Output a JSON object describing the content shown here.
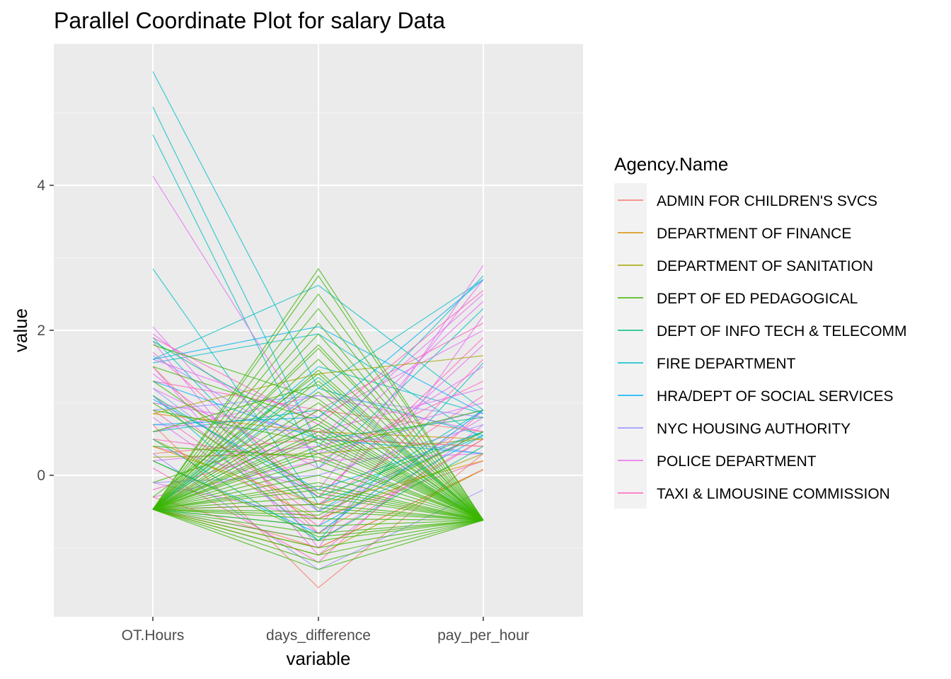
{
  "chart_data": {
    "type": "line",
    "subtype": "parallel-coordinates",
    "title": "Parallel Coordinate Plot for salary Data",
    "xlabel": "variable",
    "ylabel": "value",
    "categories": [
      "OT.Hours",
      "days_difference",
      "pay_per_hour"
    ],
    "ylim": [
      -1.95,
      5.95
    ],
    "yticks": [
      0,
      2,
      4
    ],
    "grid": true,
    "legend": {
      "title": "Agency.Name",
      "position": "right",
      "entries": [
        {
          "name": "ADMIN FOR CHILDREN'S SVCS",
          "color": "#F8766D"
        },
        {
          "name": "DEPARTMENT OF FINANCE",
          "color": "#D89000"
        },
        {
          "name": "DEPARTMENT OF SANITATION",
          "color": "#A3A500"
        },
        {
          "name": "DEPT OF ED PEDAGOGICAL",
          "color": "#39B600"
        },
        {
          "name": "DEPT OF INFO TECH & TELECOMM",
          "color": "#00BF7D"
        },
        {
          "name": "FIRE DEPARTMENT",
          "color": "#00BFC4"
        },
        {
          "name": "HRA/DEPT OF SOCIAL SERVICES",
          "color": "#00B0F6"
        },
        {
          "name": "NYC HOUSING AUTHORITY",
          "color": "#9590FF"
        },
        {
          "name": "POLICE DEPARTMENT",
          "color": "#E76BF3"
        },
        {
          "name": "TAXI & LIMOUSINE COMMISSION",
          "color": "#FF62BC"
        }
      ]
    },
    "series": [
      {
        "group": 5,
        "values": [
          5.57,
          1.2,
          2.7
        ]
      },
      {
        "group": 5,
        "values": [
          5.08,
          0.4,
          2.75
        ]
      },
      {
        "group": 5,
        "values": [
          4.7,
          0.1,
          2.3
        ]
      },
      {
        "group": 5,
        "values": [
          2.85,
          -0.4,
          0.55
        ]
      },
      {
        "group": 5,
        "values": [
          1.6,
          2.62,
          0.9
        ]
      },
      {
        "group": 5,
        "values": [
          1.55,
          1.95,
          0.5
        ]
      },
      {
        "group": 5,
        "values": [
          1.1,
          -0.9,
          1.55
        ]
      },
      {
        "group": 5,
        "values": [
          0.6,
          0.9,
          -0.62
        ]
      },
      {
        "group": 5,
        "values": [
          -0.47,
          1.5,
          0.85
        ]
      },
      {
        "group": 5,
        "values": [
          -0.47,
          1.2,
          0.55
        ]
      },
      {
        "group": 5,
        "values": [
          1.9,
          -0.5,
          0.9
        ]
      },
      {
        "group": 8,
        "values": [
          4.13,
          0.5,
          2.5
        ]
      },
      {
        "group": 8,
        "values": [
          2.05,
          -0.5,
          2.9
        ]
      },
      {
        "group": 8,
        "values": [
          1.95,
          0.3,
          2.4
        ]
      },
      {
        "group": 8,
        "values": [
          1.85,
          -1.0,
          2.2
        ]
      },
      {
        "group": 8,
        "values": [
          1.6,
          0.8,
          2.0
        ]
      },
      {
        "group": 8,
        "values": [
          1.4,
          -0.3,
          1.8
        ]
      },
      {
        "group": 8,
        "values": [
          1.2,
          0.1,
          1.5
        ]
      },
      {
        "group": 8,
        "values": [
          1.0,
          0.6,
          1.2
        ]
      },
      {
        "group": 8,
        "values": [
          0.8,
          -0.8,
          0.9
        ]
      },
      {
        "group": 8,
        "values": [
          0.6,
          1.1,
          0.6
        ]
      },
      {
        "group": 8,
        "values": [
          0.4,
          -0.2,
          2.7
        ]
      },
      {
        "group": 8,
        "values": [
          0.2,
          0.4,
          1.0
        ]
      },
      {
        "group": 8,
        "values": [
          -0.1,
          -0.6,
          0.8
        ]
      },
      {
        "group": 8,
        "values": [
          -0.3,
          0.2,
          0.3
        ]
      },
      {
        "group": 8,
        "values": [
          -0.47,
          -0.9,
          0.5
        ]
      },
      {
        "group": 8,
        "values": [
          1.5,
          -1.1,
          0.7
        ]
      },
      {
        "group": 9,
        "values": [
          1.9,
          0.7,
          2.55
        ]
      },
      {
        "group": 9,
        "values": [
          1.7,
          -0.3,
          1.9
        ]
      },
      {
        "group": 9,
        "values": [
          1.3,
          0.9,
          2.1
        ]
      },
      {
        "group": 9,
        "values": [
          0.9,
          -0.7,
          1.6
        ]
      },
      {
        "group": 9,
        "values": [
          0.5,
          0.2,
          1.3
        ]
      },
      {
        "group": 9,
        "values": [
          0.1,
          -1.2,
          0.9
        ]
      },
      {
        "group": 9,
        "values": [
          -0.2,
          0.5,
          0.4
        ]
      },
      {
        "group": 9,
        "values": [
          -0.47,
          -0.4,
          1.1
        ]
      },
      {
        "group": 9,
        "values": [
          1.1,
          -0.6,
          0.2
        ]
      },
      {
        "group": 7,
        "values": [
          1.65,
          0.3,
          0.9
        ]
      },
      {
        "group": 7,
        "values": [
          1.2,
          -0.5,
          0.6
        ]
      },
      {
        "group": 7,
        "values": [
          0.7,
          0.6,
          0.3
        ]
      },
      {
        "group": 7,
        "values": [
          0.3,
          -1.3,
          -0.2
        ]
      },
      {
        "group": 7,
        "values": [
          -0.1,
          0.0,
          0.7
        ]
      },
      {
        "group": 7,
        "values": [
          0.9,
          1.1,
          0.8
        ]
      },
      {
        "group": 6,
        "values": [
          1.6,
          2.05,
          0.85
        ]
      },
      {
        "group": 6,
        "values": [
          1.05,
          -0.2,
          0.6
        ]
      },
      {
        "group": 6,
        "values": [
          0.7,
          0.8,
          2.7
        ]
      },
      {
        "group": 6,
        "values": [
          0.2,
          -0.8,
          0.9
        ]
      },
      {
        "group": 6,
        "values": [
          -0.47,
          -0.7,
          0.55
        ]
      },
      {
        "group": 6,
        "values": [
          1.3,
          0.5,
          0.3
        ]
      },
      {
        "group": 2,
        "values": [
          0.85,
          1.4,
          1.65
        ]
      },
      {
        "group": 2,
        "values": [
          0.5,
          -0.6,
          0.3
        ]
      },
      {
        "group": 2,
        "values": [
          -0.47,
          -1.1,
          0.08
        ]
      },
      {
        "group": 2,
        "values": [
          0.25,
          0.3,
          0.5
        ]
      },
      {
        "group": 1,
        "values": [
          0.85,
          0.6,
          0.5
        ]
      },
      {
        "group": 1,
        "values": [
          0.4,
          -0.4,
          0.2
        ]
      },
      {
        "group": 1,
        "values": [
          -0.47,
          -1.0,
          0.08
        ]
      },
      {
        "group": 0,
        "values": [
          1.5,
          -0.8,
          0.5
        ]
      },
      {
        "group": 0,
        "values": [
          0.7,
          -1.55,
          0.3
        ]
      },
      {
        "group": 0,
        "values": [
          0.3,
          0.5,
          0.4
        ]
      },
      {
        "group": 0,
        "values": [
          -0.3,
          -1.0,
          0.08
        ]
      },
      {
        "group": 0,
        "values": [
          -0.47,
          0.9,
          0.6
        ]
      },
      {
        "group": 4,
        "values": [
          1.85,
          0.5,
          0.8
        ]
      },
      {
        "group": 4,
        "values": [
          1.1,
          -0.3,
          0.6
        ]
      },
      {
        "group": 4,
        "values": [
          -0.47,
          1.35,
          -0.62
        ]
      },
      {
        "group": 4,
        "values": [
          -0.47,
          0.7,
          -0.62
        ]
      },
      {
        "group": 4,
        "values": [
          0.5,
          -0.9,
          0.4
        ]
      },
      {
        "group": 3,
        "values": [
          -0.47,
          2.85,
          -0.62
        ]
      },
      {
        "group": 3,
        "values": [
          -0.47,
          2.75,
          -0.62
        ]
      },
      {
        "group": 3,
        "values": [
          -0.47,
          2.5,
          -0.62
        ]
      },
      {
        "group": 3,
        "values": [
          -0.47,
          2.3,
          -0.62
        ]
      },
      {
        "group": 3,
        "values": [
          -0.47,
          2.1,
          -0.62
        ]
      },
      {
        "group": 3,
        "values": [
          -0.47,
          1.95,
          -0.62
        ]
      },
      {
        "group": 3,
        "values": [
          -0.47,
          1.8,
          -0.62
        ]
      },
      {
        "group": 3,
        "values": [
          -0.47,
          1.6,
          -0.62
        ]
      },
      {
        "group": 3,
        "values": [
          -0.47,
          1.45,
          -0.62
        ]
      },
      {
        "group": 3,
        "values": [
          -0.47,
          1.3,
          -0.62
        ]
      },
      {
        "group": 3,
        "values": [
          -0.47,
          1.15,
          -0.62
        ]
      },
      {
        "group": 3,
        "values": [
          -0.47,
          1.0,
          -0.62
        ]
      },
      {
        "group": 3,
        "values": [
          -0.47,
          0.9,
          -0.62
        ]
      },
      {
        "group": 3,
        "values": [
          -0.47,
          0.8,
          -0.62
        ]
      },
      {
        "group": 3,
        "values": [
          -0.47,
          0.7,
          -0.62
        ]
      },
      {
        "group": 3,
        "values": [
          -0.47,
          0.6,
          -0.62
        ]
      },
      {
        "group": 3,
        "values": [
          -0.47,
          0.5,
          -0.62
        ]
      },
      {
        "group": 3,
        "values": [
          -0.47,
          0.4,
          -0.62
        ]
      },
      {
        "group": 3,
        "values": [
          -0.47,
          0.3,
          -0.62
        ]
      },
      {
        "group": 3,
        "values": [
          -0.47,
          0.2,
          -0.62
        ]
      },
      {
        "group": 3,
        "values": [
          -0.47,
          0.1,
          -0.62
        ]
      },
      {
        "group": 3,
        "values": [
          -0.47,
          0.0,
          -0.62
        ]
      },
      {
        "group": 3,
        "values": [
          -0.47,
          -0.1,
          -0.62
        ]
      },
      {
        "group": 3,
        "values": [
          -0.47,
          -0.2,
          -0.62
        ]
      },
      {
        "group": 3,
        "values": [
          -0.47,
          -0.3,
          -0.62
        ]
      },
      {
        "group": 3,
        "values": [
          -0.47,
          -0.4,
          -0.62
        ]
      },
      {
        "group": 3,
        "values": [
          -0.47,
          -0.5,
          -0.62
        ]
      },
      {
        "group": 3,
        "values": [
          -0.47,
          -0.6,
          -0.62
        ]
      },
      {
        "group": 3,
        "values": [
          -0.47,
          -0.7,
          -0.62
        ]
      },
      {
        "group": 3,
        "values": [
          -0.47,
          -0.8,
          -0.62
        ]
      },
      {
        "group": 3,
        "values": [
          -0.47,
          -0.9,
          -0.62
        ]
      },
      {
        "group": 3,
        "values": [
          -0.47,
          -1.0,
          -0.62
        ]
      },
      {
        "group": 3,
        "values": [
          -0.47,
          -1.1,
          -0.62
        ]
      },
      {
        "group": 3,
        "values": [
          -0.47,
          -1.2,
          -0.62
        ]
      },
      {
        "group": 3,
        "values": [
          -0.47,
          -1.3,
          -0.62
        ]
      },
      {
        "group": 3,
        "values": [
          -0.47,
          -0.15,
          -0.62
        ]
      },
      {
        "group": 3,
        "values": [
          -0.47,
          0.55,
          -0.62
        ]
      },
      {
        "group": 3,
        "values": [
          -0.47,
          1.75,
          -0.62
        ]
      },
      {
        "group": 3,
        "values": [
          -0.47,
          0.35,
          0.9
        ]
      },
      {
        "group": 3,
        "values": [
          -0.47,
          -0.55,
          0.6
        ]
      },
      {
        "group": 3,
        "values": [
          1.5,
          0.75,
          -0.62
        ]
      },
      {
        "group": 3,
        "values": [
          0.9,
          0.45,
          -0.62
        ]
      },
      {
        "group": 3,
        "values": [
          0.4,
          0.25,
          -0.62
        ]
      },
      {
        "group": 3,
        "values": [
          1.0,
          -0.45,
          -0.62
        ]
      },
      {
        "group": 3,
        "values": [
          1.8,
          1.05,
          -0.62
        ]
      },
      {
        "group": 3,
        "values": [
          0.6,
          1.25,
          -0.62
        ]
      },
      {
        "group": 3,
        "values": [
          0.2,
          -0.85,
          -0.62
        ]
      },
      {
        "group": 3,
        "values": [
          -0.1,
          0.65,
          -0.62
        ]
      },
      {
        "group": 3,
        "values": [
          1.3,
          -0.25,
          -0.62
        ]
      },
      {
        "group": 3,
        "values": [
          -0.3,
          1.4,
          -0.62
        ]
      }
    ]
  }
}
